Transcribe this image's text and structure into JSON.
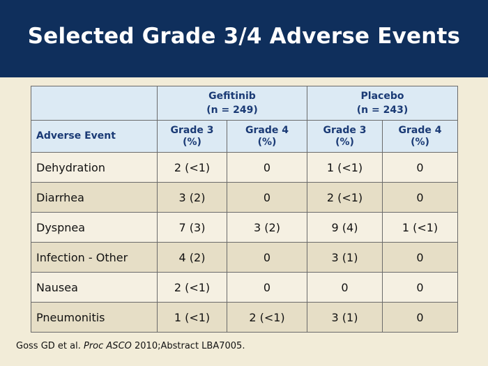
{
  "title": "Selected Grade 3/4 Adverse Events",
  "table": {
    "groups": [
      {
        "name": "Gefitinib",
        "n": "(n = 249)"
      },
      {
        "name": "Placebo",
        "n": "(n = 243)"
      }
    ],
    "first_col_header": "Adverse Event",
    "sub_headers": [
      {
        "line1": "Grade 3",
        "line2": "(%)"
      },
      {
        "line1": "Grade 4",
        "line2": "(%)"
      },
      {
        "line1": "Grade 3",
        "line2": "(%)"
      },
      {
        "line1": "Grade 4",
        "line2": "(%)"
      }
    ],
    "rows": [
      {
        "event": "Dehydration",
        "g_g3": "2 (<1)",
        "g_g4": "0",
        "p_g3": "1 (<1)",
        "p_g4": "0"
      },
      {
        "event": "Diarrhea",
        "g_g3": "3 (2)",
        "g_g4": "0",
        "p_g3": "2 (<1)",
        "p_g4": "0"
      },
      {
        "event": "Dyspnea",
        "g_g3": "7 (3)",
        "g_g4": "3 (2)",
        "p_g3": "9 (4)",
        "p_g4": "1 (<1)"
      },
      {
        "event": "Infection - Other",
        "g_g3": "4 (2)",
        "g_g4": "0",
        "p_g3": "3 (1)",
        "p_g4": "0"
      },
      {
        "event": "Nausea",
        "g_g3": "2 (<1)",
        "g_g4": "0",
        "p_g3": "0",
        "p_g4": "0"
      },
      {
        "event": "Pneumonitis",
        "g_g3": "1 (<1)",
        "g_g4": "2 (<1)",
        "p_g3": "3 (1)",
        "p_g4": "0"
      }
    ]
  },
  "citation": {
    "before": "Goss GD et al. ",
    "journal": "Proc ASCO",
    "after": " 2010;Abstract LBA7005."
  },
  "colors": {
    "header_bg": "#0f2f5c",
    "page_bg": "#f2ecd8",
    "table_header_bg": "#dceaf4",
    "table_header_text": "#1a3a75",
    "row_light": "#f5f0e2",
    "row_dark": "#e6dec6"
  }
}
